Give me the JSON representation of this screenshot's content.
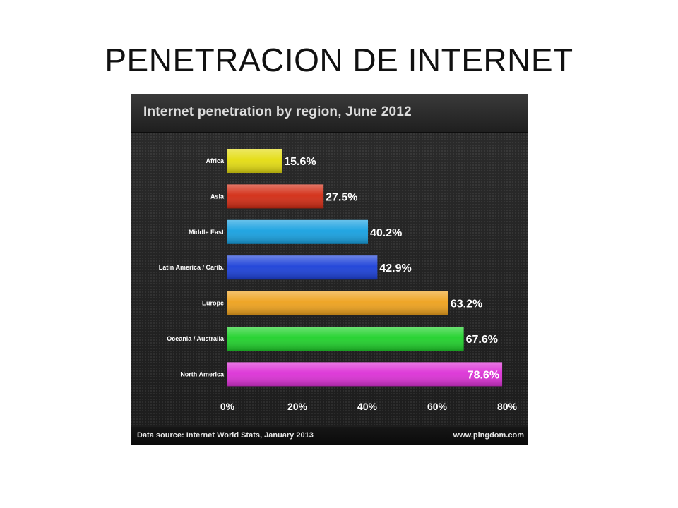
{
  "slide": {
    "title": "PENETRACION DE INTERNET"
  },
  "chart": {
    "source": "Data source: Internet World Stats, January 2013",
    "site": "www.pingdom.com"
  },
  "colors": {
    "Africa": "#e4dc10",
    "Asia": "#d22a12",
    "Middle East": "#16a0e0",
    "Latin America / Carib.": "#1a3fd8",
    "Europe": "#eea11c",
    "Oceania / Australia": "#1fd12a",
    "North America": "#dc30d6"
  },
  "chart_data": {
    "type": "bar",
    "orientation": "horizontal",
    "title": "Internet penetration by region, June 2012",
    "categories": [
      "Africa",
      "Asia",
      "Middle East",
      "Latin America / Carib.",
      "Europe",
      "Oceania / Australia",
      "North America"
    ],
    "values": [
      15.6,
      27.5,
      40.2,
      42.9,
      63.2,
      67.6,
      78.6
    ],
    "value_labels": [
      "15.6%",
      "27.5%",
      "40.2%",
      "42.9%",
      "63.2%",
      "67.6%",
      "78.6%"
    ],
    "xlim": [
      0,
      80
    ],
    "xticks": [
      0,
      20,
      40,
      60,
      80
    ],
    "xtick_labels": [
      "0%",
      "20%",
      "40%",
      "60%",
      "80%"
    ],
    "grid": false,
    "legend": "none"
  }
}
